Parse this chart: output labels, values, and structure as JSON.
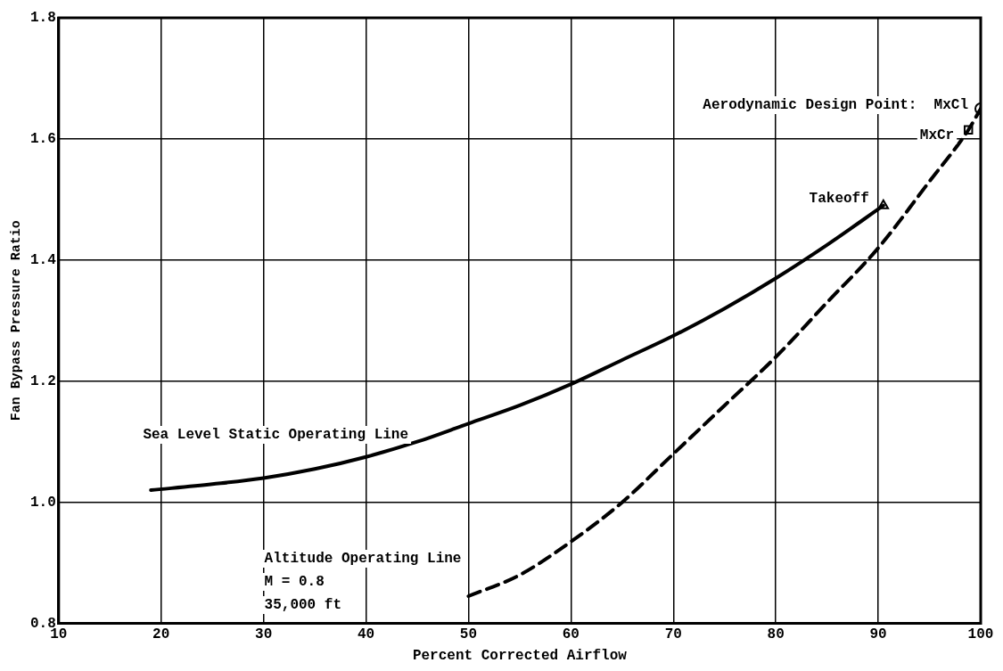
{
  "chart_data": {
    "type": "line",
    "xlabel": "Percent Corrected Airflow",
    "ylabel": "Fan Bypass Pressure Ratio",
    "xlim": [
      10,
      100
    ],
    "xticks": [
      10,
      20,
      30,
      40,
      50,
      60,
      70,
      80,
      90,
      100
    ],
    "ylim": [
      0.8,
      1.8
    ],
    "yticks": [
      {
        "value": 0.8,
        "label": "0.8"
      },
      {
        "value": 1.0,
        "label": "1.0"
      },
      {
        "value": 1.2,
        "label": "1.2"
      },
      {
        "value": 1.4,
        "label": "1.4"
      },
      {
        "value": 1.6,
        "label": "1.6"
      },
      {
        "value": 1.8,
        "label": "1.8"
      }
    ],
    "grid": true,
    "series": [
      {
        "name": "Sea Level Static Operating Line",
        "color": "#000000",
        "line_style": "solid",
        "x": [
          19,
          25,
          30,
          35,
          40,
          45,
          50,
          55,
          60,
          65,
          70,
          75,
          80,
          85,
          90.5
        ],
        "values": [
          1.02,
          1.03,
          1.04,
          1.055,
          1.075,
          1.1,
          1.13,
          1.16,
          1.195,
          1.235,
          1.275,
          1.32,
          1.37,
          1.425,
          1.49
        ]
      },
      {
        "name": "Altitude Operating Line",
        "color": "#000000",
        "line_style": "dashed",
        "x": [
          50,
          55,
          60,
          65,
          70,
          75,
          80,
          85,
          90,
          95,
          98.8,
          100
        ],
        "values": [
          0.845,
          0.88,
          0.935,
          1.0,
          1.08,
          1.16,
          1.24,
          1.33,
          1.42,
          1.53,
          1.615,
          1.65
        ]
      },
      {
        "name": "Takeoff",
        "type": "scatter",
        "color": "#000000",
        "marker": "triangle",
        "x": [
          90.5
        ],
        "values": [
          1.49
        ]
      },
      {
        "name": "MxCr",
        "type": "scatter",
        "color": "#000000",
        "marker": "square",
        "x": [
          98.8
        ],
        "values": [
          1.615
        ]
      },
      {
        "name": "Aerodynamic Design Point:  MxCl",
        "type": "scatter",
        "color": "#000000",
        "marker": "circle",
        "x": [
          100
        ],
        "values": [
          1.65
        ]
      }
    ],
    "annotations": [
      "M = 0.8",
      "35,000 ft"
    ]
  }
}
